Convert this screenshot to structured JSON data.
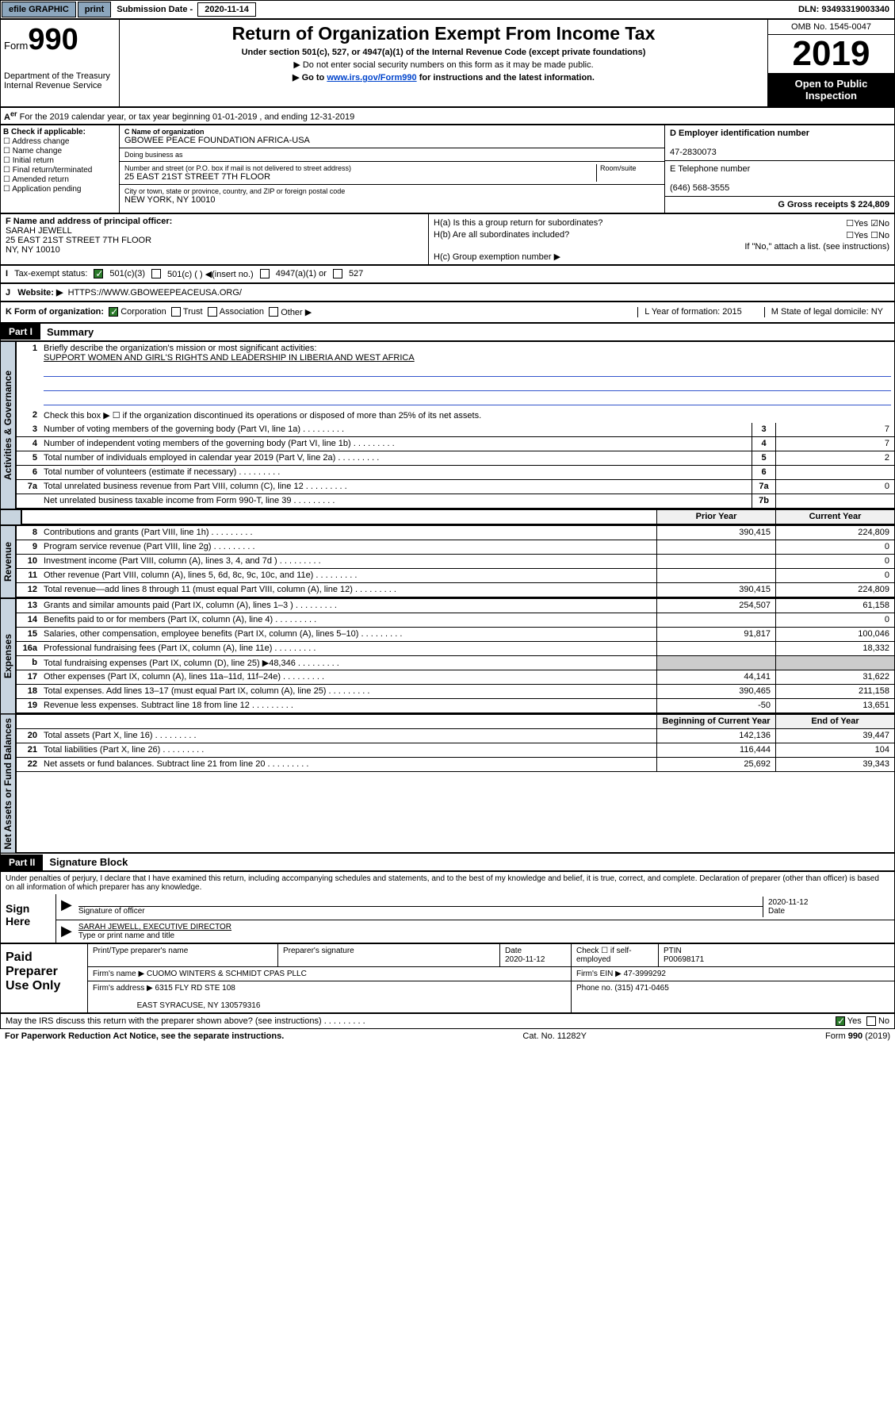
{
  "topbar": {
    "efile": "efile GRAPHIC",
    "print": "print",
    "sub_label": "Submission Date - ",
    "sub_date": "2020-11-14",
    "dln": "DLN: 93493319003340"
  },
  "header": {
    "form_word": "Form",
    "form_num": "990",
    "dept": "Department of the Treasury",
    "irs": "Internal Revenue Service",
    "title": "Return of Organization Exempt From Income Tax",
    "sub1": "Under section 501(c), 527, or 4947(a)(1) of the Internal Revenue Code (except private foundations)",
    "sub2": "▶ Do not enter social security numbers on this form as it may be made public.",
    "sub3a": "▶ Go to ",
    "sub3_link": "www.irs.gov/Form990",
    "sub3b": " for instructions and the latest information.",
    "omb": "OMB No. 1545-0047",
    "year": "2019",
    "open": "Open to Public Inspection"
  },
  "row_a": "For the 2019 calendar year, or tax year beginning 01-01-2019    , and ending 12-31-2019",
  "col_b": {
    "title": "B Check if applicable:",
    "items": [
      "Address change",
      "Name change",
      "Initial return",
      "Final return/terminated",
      "Amended return",
      "Application pending"
    ]
  },
  "col_c": {
    "name_lbl": "C Name of organization",
    "name": "GBOWEE PEACE FOUNDATION AFRICA-USA",
    "dba_lbl": "Doing business as",
    "addr_lbl": "Number and street (or P.O. box if mail is not delivered to street address)",
    "room_lbl": "Room/suite",
    "addr": "25 EAST 21ST STREET 7TH FLOOR",
    "city_lbl": "City or town, state or province, country, and ZIP or foreign postal code",
    "city": "NEW YORK, NY  10010"
  },
  "col_d": {
    "lbl": "D Employer identification number",
    "val": "47-2830073"
  },
  "col_e": {
    "lbl": "E Telephone number",
    "val": "(646) 568-3555"
  },
  "col_g": {
    "lbl": "G Gross receipts $ 224,809"
  },
  "row_f": {
    "lbl": "F  Name and address of principal officer:",
    "name": "SARAH JEWELL",
    "addr1": "25 EAST 21ST STREET 7TH FLOOR",
    "addr2": "NY, NY  10010"
  },
  "row_h": {
    "a": "H(a)  Is this a group return for subordinates?",
    "b": "H(b)  Are all subordinates included?",
    "b2": "If \"No,\" attach a list. (see instructions)",
    "c": "H(c)  Group exemption number ▶",
    "yes": "Yes",
    "no": "No"
  },
  "row_i": {
    "lbl": "Tax-exempt status:",
    "o1": "501(c)(3)",
    "o2": "501(c) (  ) ◀(insert no.)",
    "o3": "4947(a)(1) or",
    "o4": "527"
  },
  "row_j": {
    "lbl": "Website: ▶",
    "val": "HTTPS://WWW.GBOWEEPEACEUSA.ORG/"
  },
  "row_k": {
    "lbl": "K Form of organization:",
    "o1": "Corporation",
    "o2": "Trust",
    "o3": "Association",
    "o4": "Other ▶",
    "l": "L Year of formation: 2015",
    "m": "M State of legal domicile: NY"
  },
  "part1": {
    "tag": "Part I",
    "title": "Summary"
  },
  "sidebars": {
    "s1": "Activities & Governance",
    "s2": "Revenue",
    "s3": "Expenses",
    "s4": "Net Assets or Fund Balances"
  },
  "summary": {
    "l1": "Briefly describe the organization's mission or most significant activities:",
    "l1v": "SUPPORT WOMEN AND GIRL'S RIGHTS AND LEADERSHIP IN LIBERIA AND WEST AFRICA",
    "l2": "Check this box ▶ ☐  if the organization discontinued its operations or disposed of more than 25% of its net assets.",
    "rows": [
      {
        "n": "3",
        "d": "Number of voting members of the governing body (Part VI, line 1a)",
        "nb": "3",
        "v": "7"
      },
      {
        "n": "4",
        "d": "Number of independent voting members of the governing body (Part VI, line 1b)",
        "nb": "4",
        "v": "7"
      },
      {
        "n": "5",
        "d": "Total number of individuals employed in calendar year 2019 (Part V, line 2a)",
        "nb": "5",
        "v": "2"
      },
      {
        "n": "6",
        "d": "Total number of volunteers (estimate if necessary)",
        "nb": "6",
        "v": ""
      },
      {
        "n": "7a",
        "d": "Total unrelated business revenue from Part VIII, column (C), line 12",
        "nb": "7a",
        "v": "0"
      },
      {
        "n": "",
        "d": "Net unrelated business taxable income from Form 990-T, line 39",
        "nb": "7b",
        "v": ""
      }
    ],
    "hdr_prior": "Prior Year",
    "hdr_curr": "Current Year",
    "rev_rows": [
      {
        "n": "8",
        "d": "Contributions and grants (Part VIII, line 1h)",
        "p": "390,415",
        "c": "224,809"
      },
      {
        "n": "9",
        "d": "Program service revenue (Part VIII, line 2g)",
        "p": "",
        "c": "0"
      },
      {
        "n": "10",
        "d": "Investment income (Part VIII, column (A), lines 3, 4, and 7d )",
        "p": "",
        "c": "0"
      },
      {
        "n": "11",
        "d": "Other revenue (Part VIII, column (A), lines 5, 6d, 8c, 9c, 10c, and 11e)",
        "p": "",
        "c": "0"
      },
      {
        "n": "12",
        "d": "Total revenue—add lines 8 through 11 (must equal Part VIII, column (A), line 12)",
        "p": "390,415",
        "c": "224,809"
      }
    ],
    "exp_rows": [
      {
        "n": "13",
        "d": "Grants and similar amounts paid (Part IX, column (A), lines 1–3 )",
        "p": "254,507",
        "c": "61,158"
      },
      {
        "n": "14",
        "d": "Benefits paid to or for members (Part IX, column (A), line 4)",
        "p": "",
        "c": "0"
      },
      {
        "n": "15",
        "d": "Salaries, other compensation, employee benefits (Part IX, column (A), lines 5–10)",
        "p": "91,817",
        "c": "100,046"
      },
      {
        "n": "16a",
        "d": "Professional fundraising fees (Part IX, column (A), line 11e)",
        "p": "",
        "c": "18,332"
      },
      {
        "n": "b",
        "d": "Total fundraising expenses (Part IX, column (D), line 25) ▶48,346",
        "p": "—",
        "c": "—"
      },
      {
        "n": "17",
        "d": "Other expenses (Part IX, column (A), lines 11a–11d, 11f–24e)",
        "p": "44,141",
        "c": "31,622"
      },
      {
        "n": "18",
        "d": "Total expenses. Add lines 13–17 (must equal Part IX, column (A), line 25)",
        "p": "390,465",
        "c": "211,158"
      },
      {
        "n": "19",
        "d": "Revenue less expenses. Subtract line 18 from line 12",
        "p": "-50",
        "c": "13,651"
      }
    ],
    "hdr_beg": "Beginning of Current Year",
    "hdr_end": "End of Year",
    "net_rows": [
      {
        "n": "20",
        "d": "Total assets (Part X, line 16)",
        "p": "142,136",
        "c": "39,447"
      },
      {
        "n": "21",
        "d": "Total liabilities (Part X, line 26)",
        "p": "116,444",
        "c": "104"
      },
      {
        "n": "22",
        "d": "Net assets or fund balances. Subtract line 21 from line 20",
        "p": "25,692",
        "c": "39,343"
      }
    ]
  },
  "part2": {
    "tag": "Part II",
    "title": "Signature Block"
  },
  "sig": {
    "decl": "Under penalties of perjury, I declare that I have examined this return, including accompanying schedules and statements, and to the best of my knowledge and belief, it is true, correct, and complete. Declaration of preparer (other than officer) is based on all information of which preparer has any knowledge.",
    "here": "Sign Here",
    "sig_of": "Signature of officer",
    "date": "2020-11-12",
    "date_lbl": "Date",
    "name": "SARAH JEWELL, EXECUTIVE DIRECTOR",
    "name_lbl": "Type or print name and title"
  },
  "paid": {
    "title": "Paid Preparer Use Only",
    "h1": "Print/Type preparer's name",
    "h2": "Preparer's signature",
    "h3": "Date",
    "h3v": "2020-11-12",
    "h4": "Check ☐ if self-employed",
    "h5": "PTIN",
    "h5v": "P00698171",
    "firm_lbl": "Firm's name    ▶",
    "firm": "CUOMO WINTERS & SCHMIDT CPAS PLLC",
    "ein_lbl": "Firm's EIN ▶",
    "ein": "47-3999292",
    "addr_lbl": "Firm's address ▶",
    "addr1": "6315 FLY RD STE 108",
    "addr2": "EAST SYRACUSE, NY  130579316",
    "ph_lbl": "Phone no.",
    "ph": "(315) 471-0465"
  },
  "footer": {
    "q": "May the IRS discuss this return with the preparer shown above? (see instructions)",
    "yes": "Yes",
    "no": "No",
    "pra": "For Paperwork Reduction Act Notice, see the separate instructions.",
    "cat": "Cat. No. 11282Y",
    "form": "Form 990 (2019)"
  }
}
